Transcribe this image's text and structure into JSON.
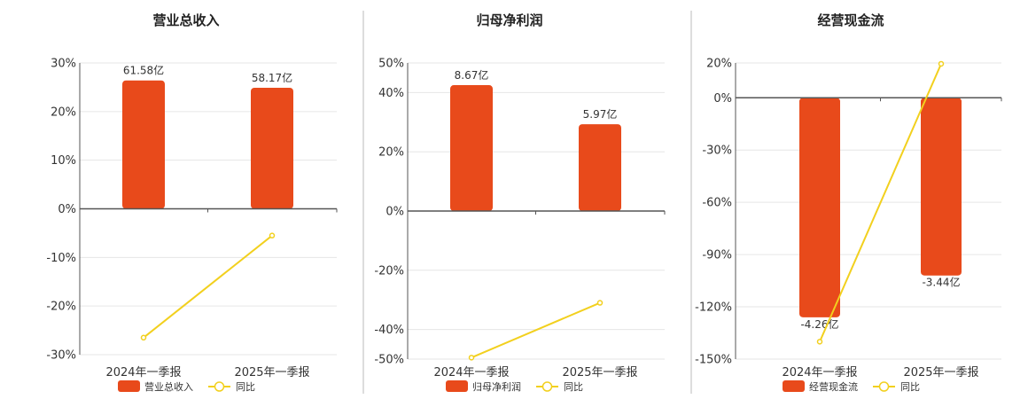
{
  "colors": {
    "bar": "#E84A1B",
    "line": "#F2D01E",
    "grid": "#E6E6E6",
    "axis": "#555555",
    "divider": "#BBBBBB"
  },
  "chart_data": [
    {
      "type": "bar",
      "title": "营业总收入",
      "categories": [
        "2024年一季报",
        "2025年一季报"
      ],
      "ylim": [
        -30,
        30
      ],
      "yticks": [
        30,
        20,
        10,
        0,
        -10,
        -20,
        -30
      ],
      "series": [
        {
          "name": "营业总收入",
          "type": "bar",
          "values": [
            26.4,
            24.9
          ],
          "labels": [
            "61.58亿",
            "58.17亿"
          ]
        },
        {
          "name": "同比",
          "type": "line",
          "values": [
            -26.5,
            -5.5
          ]
        }
      ],
      "legend": "bottom",
      "grid": true
    },
    {
      "type": "bar",
      "title": "归母净利润",
      "categories": [
        "2024年一季报",
        "2025年一季报"
      ],
      "ylim": [
        -50,
        50
      ],
      "yticks": [
        50,
        40,
        20,
        0,
        -20,
        -40,
        -50
      ],
      "series": [
        {
          "name": "归母净利润",
          "type": "bar",
          "values": [
            42.5,
            29.3
          ],
          "labels": [
            "8.67亿",
            "5.97亿"
          ]
        },
        {
          "name": "同比",
          "type": "line",
          "values": [
            -49.5,
            -31
          ]
        }
      ],
      "legend": "bottom",
      "grid": true
    },
    {
      "type": "bar",
      "title": "经营现金流",
      "categories": [
        "2024年一季报",
        "2025年一季报"
      ],
      "ylim": [
        -150,
        20
      ],
      "yticks": [
        20,
        0,
        -30,
        -60,
        -90,
        -120,
        -150
      ],
      "series": [
        {
          "name": "经营现金流",
          "type": "bar",
          "values": [
            -126,
            -102
          ],
          "labels": [
            "-4.26亿",
            "-3.44亿"
          ]
        },
        {
          "name": "同比",
          "type": "line",
          "values": [
            -140,
            19.5
          ]
        }
      ],
      "legend": "bottom",
      "grid": true
    }
  ]
}
